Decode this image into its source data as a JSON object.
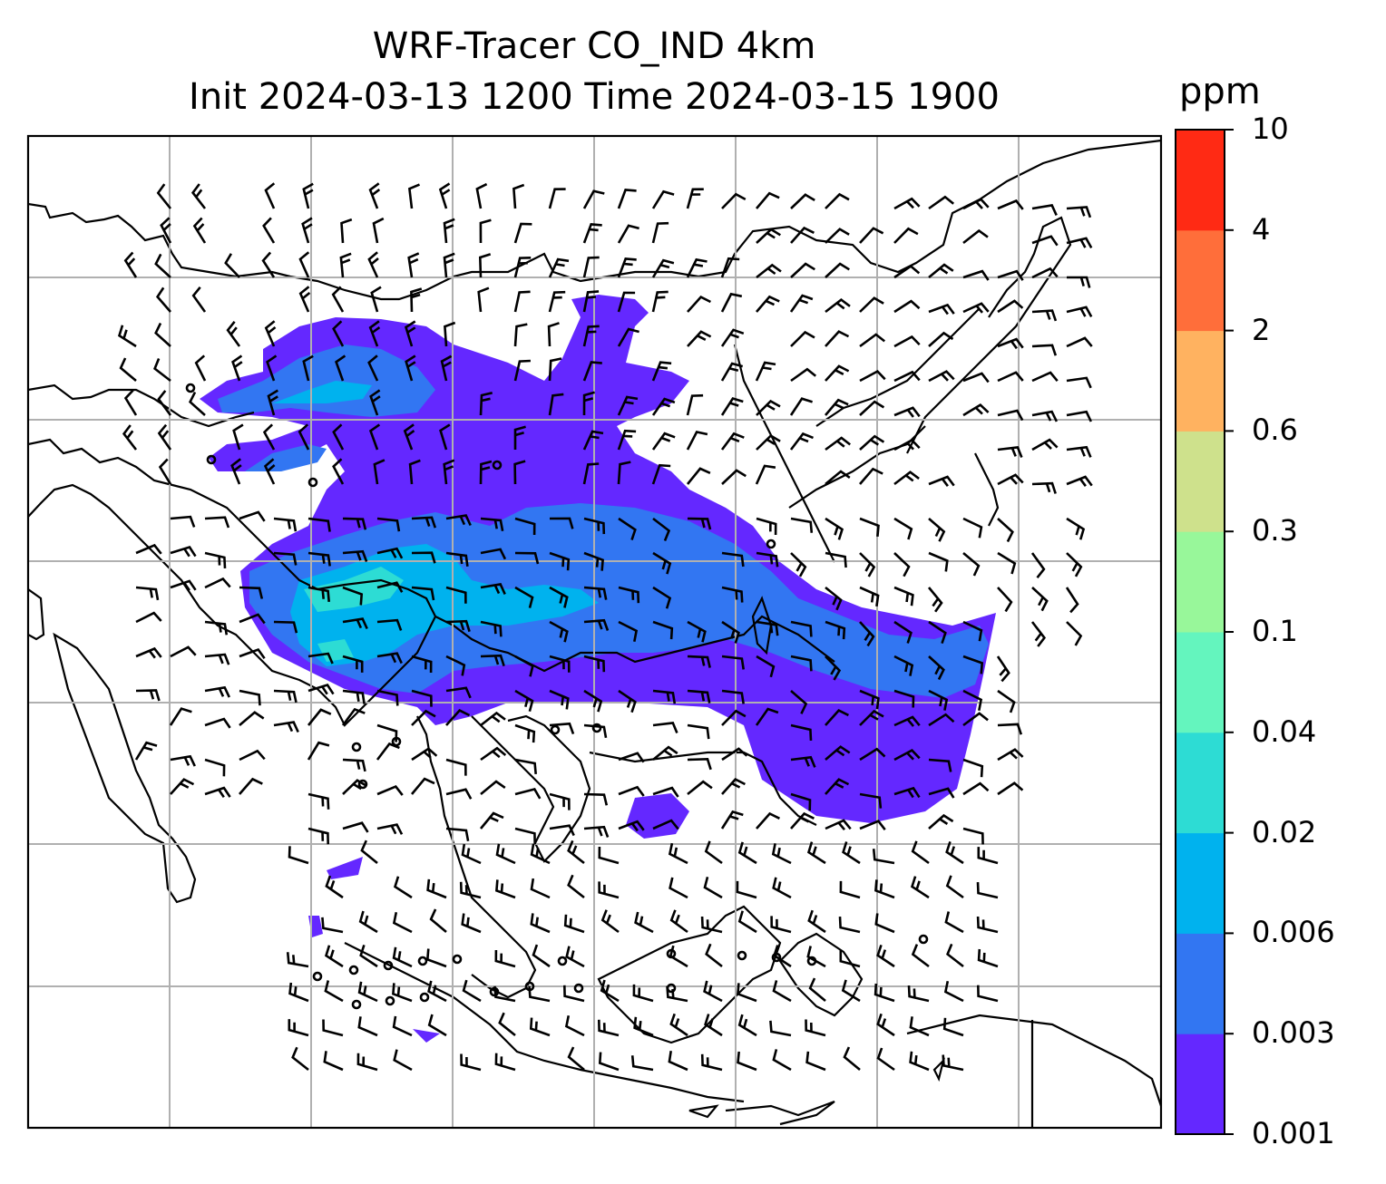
{
  "title": {
    "line1": "WRF-Tracer CO_IND 4km",
    "line2": "Init 2024-03-13 1200 Time 2024-03-15 1900"
  },
  "colorbar": {
    "unit": "ppm",
    "ticks": [
      "0.001",
      "0.003",
      "0.006",
      "0.02",
      "0.04",
      "0.1",
      "0.3",
      "0.6",
      "2",
      "4",
      "10"
    ],
    "colors": [
      "#6428FF",
      "#3276F2",
      "#00B2EE",
      "#2DDCD4",
      "#64F5BE",
      "#98F79A",
      "#CEE18C",
      "#FFB260",
      "#FF6E3A",
      "#FF2A14"
    ]
  },
  "map": {
    "gridlines": true,
    "gridline_color": "#b0b0b0",
    "coastline_color": "#000000",
    "plume_description_levels": [
      "0.001-0.003",
      "0.003-0.006",
      "0.006-0.02",
      "0.02-0.04"
    ]
  }
}
